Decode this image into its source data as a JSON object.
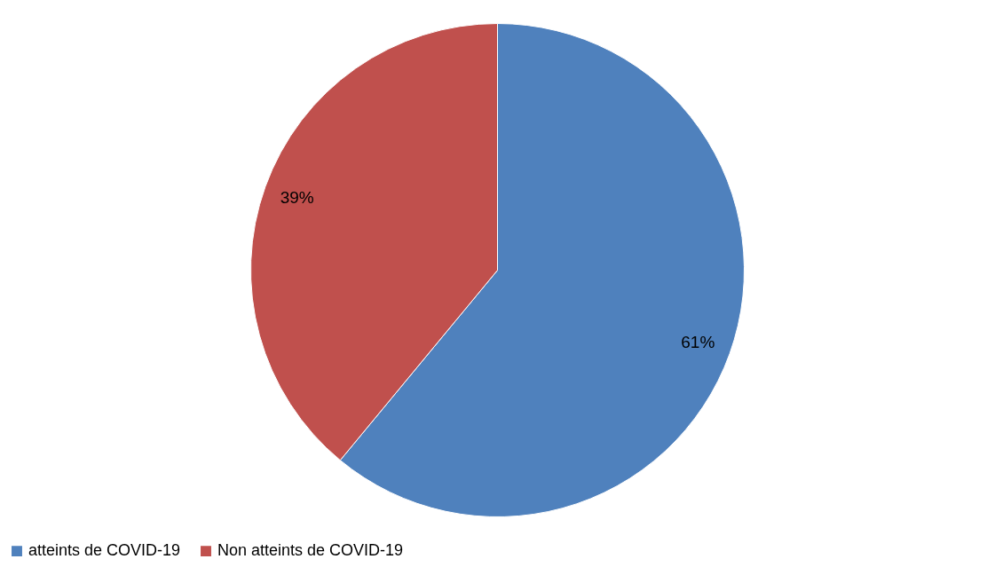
{
  "chart_data": {
    "type": "pie",
    "categories": [
      "atteints de COVID-19",
      "Non atteints de COVID-19"
    ],
    "values": [
      61,
      39
    ],
    "colors": [
      "#4f81bd",
      "#c0504d"
    ],
    "value_labels": [
      "61%",
      "39%"
    ],
    "legend": "bottom"
  }
}
